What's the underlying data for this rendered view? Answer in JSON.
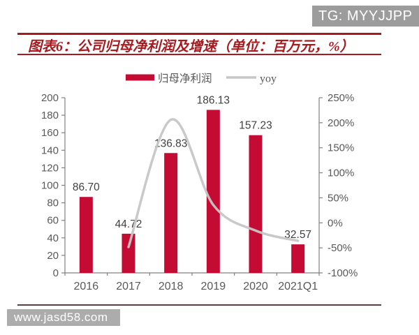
{
  "badge": {
    "label": "TG: MYYJJPP",
    "bg": "#9C9C9C"
  },
  "header": {
    "title": "图表6：公司归母净利润及增速（单位：百万元，%）",
    "accent_color": "#A81A1E"
  },
  "footer": {
    "watermark": "www.jasd58.com",
    "watermark_bg": "#ACACAC",
    "rule_color": "#5A3E42"
  },
  "chart_data": {
    "type": "bar",
    "title": "公司归母净利润及增速",
    "unit": "百万元，%",
    "categories": [
      "2016",
      "2017",
      "2018",
      "2019",
      "2020",
      "2021Q1"
    ],
    "series": [
      {
        "name": "归母净利润",
        "type": "bar",
        "axis": "left",
        "color": "#C30B33",
        "values": [
          86.7,
          44.72,
          136.83,
          186.13,
          157.23,
          32.57
        ],
        "labels": [
          "86.70",
          "44.72",
          "136.83",
          "186.13",
          "157.23",
          "32.57"
        ]
      },
      {
        "name": "yoy",
        "type": "line",
        "axis": "right",
        "color": "#C6C6C6",
        "values": [
          null,
          -48.4,
          206.0,
          36.0,
          -15.5,
          -36.0
        ]
      }
    ],
    "left_axis": {
      "min": 0,
      "max": 200,
      "step": 20,
      "tick_labels": [
        "0",
        "20",
        "40",
        "60",
        "80",
        "100",
        "120",
        "140",
        "160",
        "180",
        "200"
      ]
    },
    "right_axis": {
      "min": -100,
      "max": 250,
      "step": 50,
      "tick_labels": [
        "-100%",
        "-50%",
        "0%",
        "50%",
        "100%",
        "150%",
        "200%",
        "250%"
      ]
    },
    "legend": [
      "归母净利润",
      "yoy"
    ],
    "legend_position": "top",
    "grid": false,
    "colors": {
      "axis_line": "#808080",
      "tick_text": "#595959",
      "bar_label": "#404040"
    }
  }
}
